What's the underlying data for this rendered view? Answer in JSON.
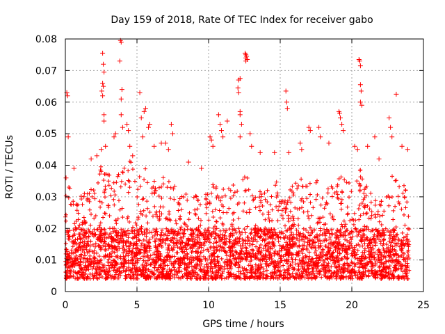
{
  "chart_data": {
    "type": "scatter",
    "title": "Day 159 of 2018, Rate Of TEC Index for receiver gabo",
    "xlabel": "GPS time / hours",
    "ylabel": "ROTI / TECUs",
    "xlim": [
      0,
      25
    ],
    "ylim": [
      0,
      0.08
    ],
    "xticks": [
      "0",
      "5",
      "10",
      "15",
      "20",
      "25"
    ],
    "yticks": [
      "0",
      "0.01",
      "0.02",
      "0.03",
      "0.04",
      "0.05",
      "0.06",
      "0.07",
      "0.08"
    ],
    "grid": true,
    "marker": "+",
    "color": "#ff0000",
    "data_extent_hours": [
      0,
      24
    ],
    "baseline_range": [
      0.004,
      0.02
    ],
    "notable_points": [
      {
        "x": 0.1,
        "y": 0.063
      },
      {
        "x": 0.15,
        "y": 0.062
      },
      {
        "x": 0.2,
        "y": 0.049
      },
      {
        "x": 0.05,
        "y": 0.036
      },
      {
        "x": 0.6,
        "y": 0.039
      },
      {
        "x": 1.8,
        "y": 0.042
      },
      {
        "x": 2.2,
        "y": 0.043
      },
      {
        "x": 2.6,
        "y": 0.0755
      },
      {
        "x": 2.65,
        "y": 0.072
      },
      {
        "x": 2.7,
        "y": 0.0695
      },
      {
        "x": 2.6,
        "y": 0.066
      },
      {
        "x": 2.65,
        "y": 0.065
      },
      {
        "x": 2.55,
        "y": 0.0635
      },
      {
        "x": 2.6,
        "y": 0.062
      },
      {
        "x": 2.7,
        "y": 0.056
      },
      {
        "x": 2.7,
        "y": 0.054
      },
      {
        "x": 2.8,
        "y": 0.046
      },
      {
        "x": 2.5,
        "y": 0.045
      },
      {
        "x": 3.5,
        "y": 0.05
      },
      {
        "x": 3.4,
        "y": 0.049
      },
      {
        "x": 3.85,
        "y": 0.0795
      },
      {
        "x": 3.9,
        "y": 0.079
      },
      {
        "x": 3.8,
        "y": 0.073
      },
      {
        "x": 3.95,
        "y": 0.064
      },
      {
        "x": 3.9,
        "y": 0.061
      },
      {
        "x": 3.9,
        "y": 0.056
      },
      {
        "x": 4.0,
        "y": 0.052
      },
      {
        "x": 4.3,
        "y": 0.053
      },
      {
        "x": 4.4,
        "y": 0.051
      },
      {
        "x": 4.5,
        "y": 0.046
      },
      {
        "x": 4.7,
        "y": 0.043
      },
      {
        "x": 5.2,
        "y": 0.063
      },
      {
        "x": 5.5,
        "y": 0.057
      },
      {
        "x": 5.6,
        "y": 0.058
      },
      {
        "x": 5.3,
        "y": 0.055
      },
      {
        "x": 5.8,
        "y": 0.052
      },
      {
        "x": 5.9,
        "y": 0.053
      },
      {
        "x": 5.4,
        "y": 0.049
      },
      {
        "x": 6.2,
        "y": 0.046
      },
      {
        "x": 6.7,
        "y": 0.047
      },
      {
        "x": 7.0,
        "y": 0.047
      },
      {
        "x": 7.2,
        "y": 0.045
      },
      {
        "x": 7.4,
        "y": 0.053
      },
      {
        "x": 7.5,
        "y": 0.05
      },
      {
        "x": 8.6,
        "y": 0.041
      },
      {
        "x": 9.5,
        "y": 0.039
      },
      {
        "x": 10.1,
        "y": 0.049
      },
      {
        "x": 10.2,
        "y": 0.048
      },
      {
        "x": 10.3,
        "y": 0.046
      },
      {
        "x": 10.7,
        "y": 0.056
      },
      {
        "x": 10.8,
        "y": 0.053
      },
      {
        "x": 10.9,
        "y": 0.051
      },
      {
        "x": 11.0,
        "y": 0.049
      },
      {
        "x": 11.3,
        "y": 0.054
      },
      {
        "x": 12.1,
        "y": 0.067
      },
      {
        "x": 12.2,
        "y": 0.0675
      },
      {
        "x": 12.05,
        "y": 0.0645
      },
      {
        "x": 12.1,
        "y": 0.063
      },
      {
        "x": 12.2,
        "y": 0.057
      },
      {
        "x": 12.2,
        "y": 0.056
      },
      {
        "x": 12.3,
        "y": 0.053
      },
      {
        "x": 12.2,
        "y": 0.049
      },
      {
        "x": 12.55,
        "y": 0.0755
      },
      {
        "x": 12.6,
        "y": 0.075
      },
      {
        "x": 12.65,
        "y": 0.0745
      },
      {
        "x": 12.6,
        "y": 0.074
      },
      {
        "x": 12.7,
        "y": 0.0735
      },
      {
        "x": 12.6,
        "y": 0.073
      },
      {
        "x": 12.9,
        "y": 0.05
      },
      {
        "x": 13.0,
        "y": 0.046
      },
      {
        "x": 13.6,
        "y": 0.044
      },
      {
        "x": 14.6,
        "y": 0.044
      },
      {
        "x": 15.4,
        "y": 0.0635
      },
      {
        "x": 15.45,
        "y": 0.06
      },
      {
        "x": 15.5,
        "y": 0.058
      },
      {
        "x": 15.6,
        "y": 0.044
      },
      {
        "x": 16.4,
        "y": 0.047
      },
      {
        "x": 16.5,
        "y": 0.045
      },
      {
        "x": 17.0,
        "y": 0.052
      },
      {
        "x": 17.1,
        "y": 0.051
      },
      {
        "x": 17.7,
        "y": 0.052
      },
      {
        "x": 17.8,
        "y": 0.049
      },
      {
        "x": 18.4,
        "y": 0.047
      },
      {
        "x": 19.1,
        "y": 0.057
      },
      {
        "x": 19.15,
        "y": 0.0565
      },
      {
        "x": 19.2,
        "y": 0.055
      },
      {
        "x": 19.3,
        "y": 0.053
      },
      {
        "x": 19.4,
        "y": 0.051
      },
      {
        "x": 20.5,
        "y": 0.0735
      },
      {
        "x": 20.55,
        "y": 0.073
      },
      {
        "x": 20.6,
        "y": 0.0715
      },
      {
        "x": 20.6,
        "y": 0.0655
      },
      {
        "x": 20.65,
        "y": 0.0635
      },
      {
        "x": 20.6,
        "y": 0.06
      },
      {
        "x": 20.7,
        "y": 0.059
      },
      {
        "x": 20.2,
        "y": 0.046
      },
      {
        "x": 20.4,
        "y": 0.045
      },
      {
        "x": 21.1,
        "y": 0.046
      },
      {
        "x": 21.6,
        "y": 0.049
      },
      {
        "x": 21.9,
        "y": 0.042
      },
      {
        "x": 22.6,
        "y": 0.055
      },
      {
        "x": 22.7,
        "y": 0.052
      },
      {
        "x": 22.8,
        "y": 0.049
      },
      {
        "x": 23.1,
        "y": 0.0625
      },
      {
        "x": 23.5,
        "y": 0.046
      },
      {
        "x": 23.9,
        "y": 0.045
      }
    ],
    "envelope": {
      "hours": [
        0,
        0.5,
        1,
        1.5,
        2,
        2.5,
        3,
        3.5,
        4,
        4.5,
        5,
        5.5,
        6,
        6.5,
        7,
        7.5,
        8,
        8.5,
        9,
        9.5,
        10,
        10.5,
        11,
        11.5,
        12,
        12.5,
        13,
        13.5,
        14,
        14.5,
        15,
        15.5,
        16,
        16.5,
        17,
        17.5,
        18,
        18.5,
        19,
        19.5,
        20,
        20.5,
        21,
        21.5,
        22,
        22.5,
        23,
        23.5,
        24
      ],
      "upper": [
        0.035,
        0.032,
        0.03,
        0.032,
        0.034,
        0.04,
        0.038,
        0.036,
        0.04,
        0.042,
        0.036,
        0.04,
        0.036,
        0.034,
        0.038,
        0.036,
        0.03,
        0.032,
        0.03,
        0.032,
        0.034,
        0.038,
        0.036,
        0.034,
        0.036,
        0.038,
        0.034,
        0.032,
        0.034,
        0.036,
        0.034,
        0.032,
        0.034,
        0.036,
        0.034,
        0.036,
        0.03,
        0.034,
        0.038,
        0.036,
        0.034,
        0.04,
        0.034,
        0.03,
        0.028,
        0.034,
        0.038,
        0.036,
        0.03
      ]
    }
  }
}
